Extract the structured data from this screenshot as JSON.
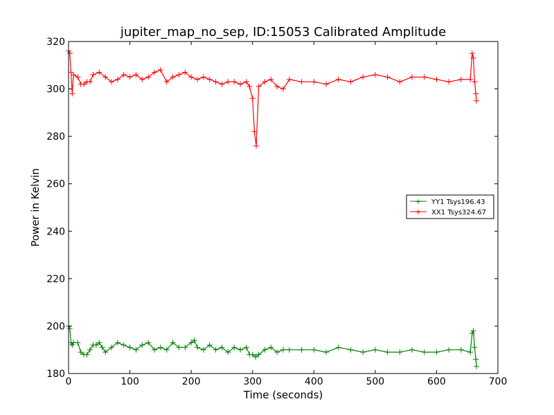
{
  "chart_data": {
    "type": "line",
    "title": "jupiter_map_no_sep, ID:15053 Calibrated Amplitude",
    "xlabel": "Time (seconds)",
    "ylabel": "Power in Kelvin",
    "xlim": [
      0,
      700
    ],
    "ylim": [
      180,
      320
    ],
    "x_ticks": [
      0,
      100,
      200,
      300,
      400,
      500,
      600,
      700
    ],
    "y_ticks": [
      180,
      200,
      220,
      240,
      260,
      280,
      300,
      320
    ],
    "grid": false,
    "legend_position": "right",
    "marker": "+",
    "series": [
      {
        "name": "YY1 Tsys196.43",
        "color": "#008000",
        "x": [
          0,
          2,
          4,
          6,
          8,
          15,
          20,
          25,
          30,
          35,
          40,
          45,
          50,
          55,
          60,
          70,
          80,
          90,
          100,
          110,
          120,
          130,
          140,
          150,
          160,
          170,
          180,
          190,
          200,
          205,
          210,
          220,
          230,
          240,
          250,
          260,
          270,
          280,
          290,
          295,
          300,
          305,
          310,
          320,
          330,
          340,
          350,
          360,
          380,
          400,
          420,
          440,
          460,
          480,
          500,
          520,
          540,
          560,
          580,
          600,
          620,
          640,
          655,
          658,
          660,
          662,
          664,
          665
        ],
        "y": [
          200,
          199,
          193,
          192,
          193,
          193,
          189,
          188,
          188,
          190,
          192,
          192,
          193,
          191,
          189,
          191,
          193,
          192,
          191,
          190,
          192,
          193,
          190,
          191,
          190,
          193,
          191,
          191,
          193,
          194,
          191,
          190,
          192,
          190,
          191,
          189,
          191,
          190,
          191,
          188,
          188,
          187,
          188,
          190,
          191,
          189,
          190,
          190,
          190,
          190,
          189,
          191,
          190,
          189,
          190,
          189,
          189,
          190,
          189,
          189,
          190,
          190,
          189,
          197,
          198,
          191,
          186,
          183
        ]
      },
      {
        "name": "XX1 Tsys324.67",
        "color": "#ff0000",
        "x": [
          0,
          2,
          4,
          6,
          8,
          15,
          20,
          25,
          30,
          35,
          40,
          50,
          60,
          70,
          80,
          90,
          100,
          110,
          120,
          130,
          140,
          150,
          160,
          170,
          180,
          190,
          200,
          210,
          220,
          230,
          240,
          250,
          260,
          270,
          280,
          290,
          295,
          300,
          303,
          306,
          310,
          320,
          330,
          340,
          350,
          360,
          380,
          400,
          420,
          440,
          460,
          480,
          500,
          520,
          540,
          560,
          580,
          600,
          620,
          640,
          655,
          658,
          660,
          662,
          664,
          665
        ],
        "y": [
          316,
          315,
          307,
          298,
          306,
          305,
          302,
          302,
          303,
          303,
          306,
          307,
          305,
          303,
          304,
          306,
          305,
          306,
          304,
          305,
          307,
          308,
          303,
          305,
          306,
          307,
          305,
          304,
          305,
          304,
          303,
          302,
          303,
          303,
          302,
          303,
          301,
          296,
          282,
          276,
          301,
          303,
          304,
          301,
          300,
          304,
          303,
          303,
          302,
          304,
          303,
          305,
          306,
          305,
          303,
          305,
          305,
          304,
          303,
          304,
          304,
          315,
          313,
          303,
          298,
          295
        ]
      }
    ]
  }
}
